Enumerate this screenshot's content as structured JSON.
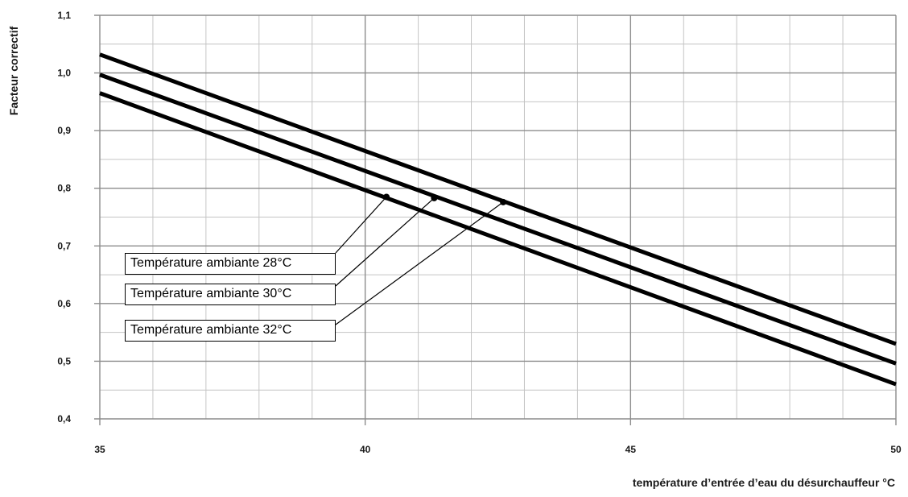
{
  "chart_data": {
    "type": "line",
    "title": "",
    "xlabel": "température d’entrée d’eau du désurchauffeur °C",
    "ylabel": "Facteur correctif",
    "xlim": [
      35,
      50
    ],
    "ylim": [
      0.4,
      1.1
    ],
    "x_major_ticks": [
      35,
      40,
      45,
      50
    ],
    "x_tick_labels": [
      "35",
      "40",
      "45",
      "50"
    ],
    "x_minor_step": 1,
    "y_ticks": [
      0.4,
      0.5,
      0.6,
      0.7,
      0.8,
      0.9,
      1.0,
      1.1
    ],
    "y_tick_labels": [
      "0,4",
      "0,5",
      "0,6",
      "0,7",
      "0,8",
      "0,9",
      "1,0",
      "1,1"
    ],
    "y_minor_step": 0.05,
    "grid": true,
    "series": [
      {
        "name": "Température ambiante 28°C",
        "x": [
          35,
          50
        ],
        "y": [
          1.032,
          0.53
        ],
        "marker": {
          "x": 42.6,
          "y": 0.776
        }
      },
      {
        "name": "Température ambiante 30°C",
        "x": [
          35,
          50
        ],
        "y": [
          0.997,
          0.496
        ],
        "marker": {
          "x": 41.3,
          "y": 0.783
        }
      },
      {
        "name": "Température ambiante 32°C",
        "x": [
          35,
          50
        ],
        "y": [
          0.965,
          0.46
        ],
        "marker": {
          "x": 40.4,
          "y": 0.785
        }
      }
    ],
    "colors": {
      "line": "#000000",
      "grid_major": "#8c8c8c",
      "grid_minor": "#c4c4c4"
    }
  }
}
